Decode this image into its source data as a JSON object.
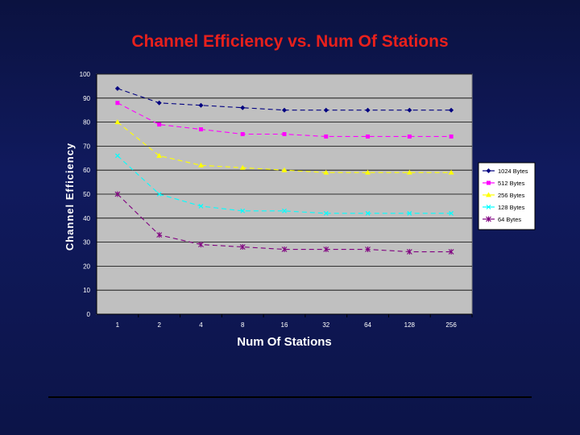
{
  "slide": {
    "background": "#101a5e"
  },
  "chart_data": {
    "type": "line",
    "title": "Channel Efficiency vs. Num Of Stations",
    "xlabel": "Num Of Stations",
    "ylabel": "Channel Efficiency",
    "categories": [
      "1",
      "2",
      "4",
      "8",
      "16",
      "32",
      "64",
      "128",
      "256"
    ],
    "ylim": [
      0,
      100
    ],
    "yticks": [
      0,
      10,
      20,
      30,
      40,
      50,
      60,
      70,
      80,
      90,
      100
    ],
    "grid": true,
    "legend_position": "right",
    "plot_background": "#c0c0c0",
    "series": [
      {
        "name": "1024 Bytes",
        "color": "#000080",
        "marker": "diamond",
        "dashed": true,
        "values": [
          94,
          88,
          87,
          86,
          85,
          85,
          85,
          85,
          85
        ]
      },
      {
        "name": "512 Bytes",
        "color": "#ff00ff",
        "marker": "square",
        "dashed": true,
        "values": [
          88,
          79,
          77,
          75,
          75,
          74,
          74,
          74,
          74
        ]
      },
      {
        "name": "256 Bytes",
        "color": "#ffff00",
        "marker": "triangle",
        "dashed": true,
        "values": [
          80,
          66,
          62,
          61,
          60,
          59,
          59,
          59,
          59
        ]
      },
      {
        "name": "128 Bytes",
        "color": "#00ffff",
        "marker": "x",
        "dashed": true,
        "values": [
          66,
          50,
          45,
          43,
          43,
          42,
          42,
          42,
          42
        ]
      },
      {
        "name": "64 Bytes",
        "color": "#800080",
        "marker": "star",
        "dashed": true,
        "values": [
          50,
          33,
          29,
          28,
          27,
          27,
          27,
          26,
          26
        ]
      }
    ]
  }
}
